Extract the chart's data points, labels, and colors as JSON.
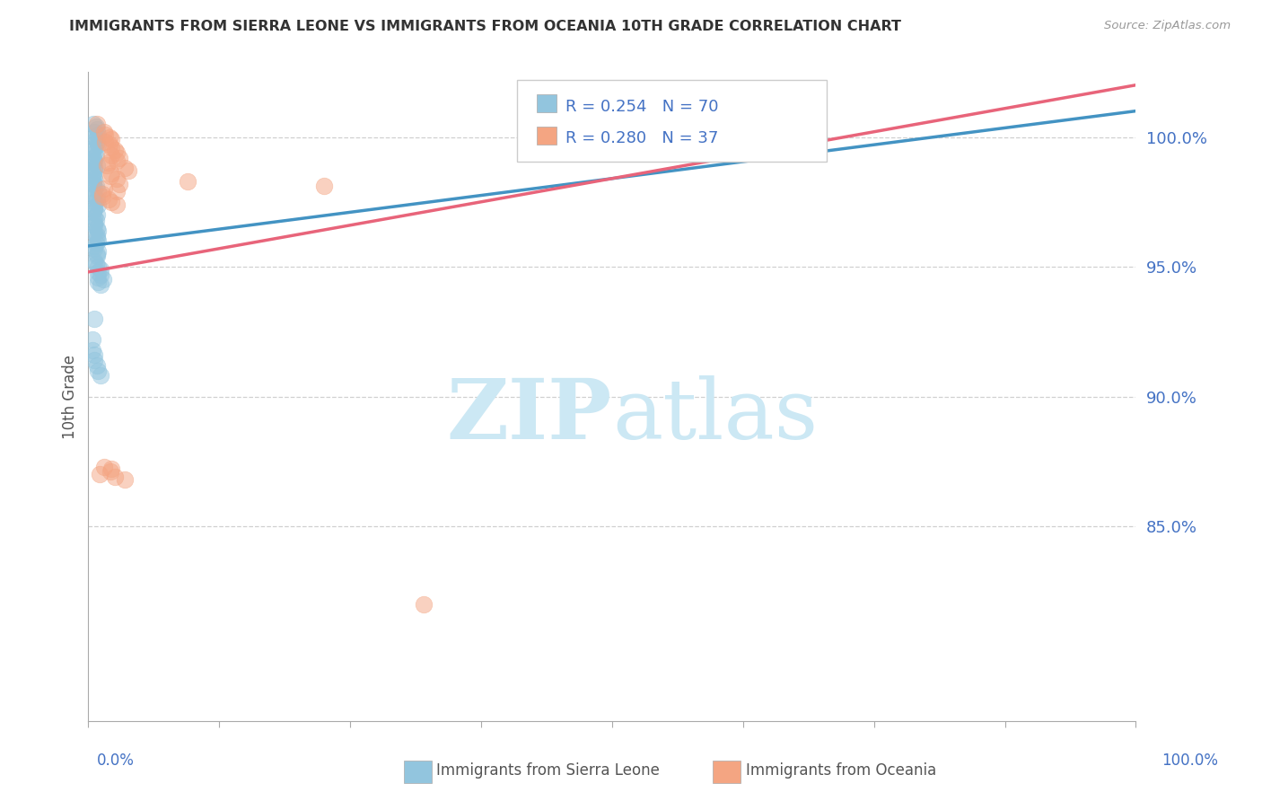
{
  "title": "IMMIGRANTS FROM SIERRA LEONE VS IMMIGRANTS FROM OCEANIA 10TH GRADE CORRELATION CHART",
  "source": "Source: ZipAtlas.com",
  "ylabel": "10th Grade",
  "xlim": [
    0.0,
    1.0
  ],
  "ylim": [
    0.775,
    1.025
  ],
  "legend_r1": "R = 0.254   N = 70",
  "legend_r2": "R = 0.280   N = 37",
  "footer_blue": "Immigrants from Sierra Leone",
  "footer_pink": "Immigrants from Oceania",
  "blue_color": "#92c5de",
  "pink_color": "#f4a582",
  "blue_line_color": "#4393c3",
  "pink_line_color": "#e8647a",
  "watermark_zip": "ZIP",
  "watermark_atlas": "atlas",
  "watermark_color": "#cce8f4",
  "background_color": "#ffffff",
  "grid_color": "#d0d0d0",
  "ytick_labels": [
    "100.0%",
    "95.0%",
    "90.0%",
    "85.0%"
  ],
  "ytick_values": [
    1.0,
    0.95,
    0.9,
    0.85
  ],
  "blue_scatter_x": [
    0.005,
    0.007,
    0.008,
    0.006,
    0.009,
    0.006,
    0.007,
    0.008,
    0.009,
    0.006,
    0.005,
    0.006,
    0.007,
    0.005,
    0.006,
    0.005,
    0.008,
    0.006,
    0.006,
    0.005,
    0.005,
    0.006,
    0.005,
    0.005,
    0.007,
    0.006,
    0.009,
    0.005,
    0.006,
    0.008,
    0.006,
    0.009,
    0.006,
    0.006,
    0.005,
    0.008,
    0.006,
    0.007,
    0.006,
    0.006,
    0.008,
    0.009,
    0.006,
    0.008,
    0.008,
    0.009,
    0.007,
    0.006,
    0.006,
    0.009,
    0.008,
    0.008,
    0.006,
    0.007,
    0.009,
    0.012,
    0.009,
    0.012,
    0.009,
    0.014,
    0.009,
    0.012,
    0.006,
    0.004,
    0.004,
    0.006,
    0.006,
    0.008,
    0.009,
    0.012
  ],
  "blue_scatter_y": [
    1.005,
    1.004,
    1.003,
    1.002,
    1.001,
    1.0,
    0.999,
    0.998,
    0.997,
    0.996,
    0.995,
    0.994,
    0.993,
    0.992,
    0.991,
    0.99,
    0.989,
    0.988,
    0.987,
    0.986,
    0.985,
    0.984,
    0.983,
    0.982,
    0.981,
    0.98,
    0.979,
    0.978,
    0.977,
    0.976,
    0.975,
    0.974,
    0.973,
    0.972,
    0.971,
    0.97,
    0.969,
    0.968,
    0.967,
    0.966,
    0.965,
    0.964,
    0.963,
    0.962,
    0.961,
    0.96,
    0.959,
    0.958,
    0.957,
    0.956,
    0.955,
    0.954,
    0.952,
    0.951,
    0.95,
    0.949,
    0.948,
    0.947,
    0.946,
    0.945,
    0.944,
    0.943,
    0.93,
    0.922,
    0.918,
    0.916,
    0.914,
    0.912,
    0.91,
    0.908
  ],
  "pink_scatter_x": [
    0.008,
    0.015,
    0.016,
    0.02,
    0.022,
    0.016,
    0.02,
    0.022,
    0.025,
    0.027,
    0.022,
    0.03,
    0.027,
    0.019,
    0.018,
    0.035,
    0.038,
    0.022,
    0.021,
    0.027,
    0.095,
    0.03,
    0.225,
    0.015,
    0.027,
    0.013,
    0.013,
    0.019,
    0.022,
    0.027,
    0.015,
    0.022,
    0.021,
    0.011,
    0.025,
    0.035,
    0.32
  ],
  "pink_scatter_y": [
    1.005,
    1.002,
    1.001,
    1.0,
    0.999,
    0.998,
    0.997,
    0.996,
    0.995,
    0.994,
    0.993,
    0.992,
    0.991,
    0.99,
    0.989,
    0.988,
    0.987,
    0.986,
    0.985,
    0.984,
    0.983,
    0.982,
    0.981,
    0.98,
    0.979,
    0.978,
    0.977,
    0.976,
    0.975,
    0.974,
    0.873,
    0.872,
    0.871,
    0.87,
    0.869,
    0.868,
    0.82
  ],
  "blue_trend_x": [
    0.0,
    1.0
  ],
  "blue_trend_y": [
    0.958,
    1.01
  ],
  "pink_trend_x": [
    0.0,
    1.0
  ],
  "pink_trend_y": [
    0.948,
    1.02
  ],
  "xtick_positions": [
    0.0,
    0.125,
    0.25,
    0.375,
    0.5,
    0.625,
    0.75,
    0.875,
    1.0
  ]
}
